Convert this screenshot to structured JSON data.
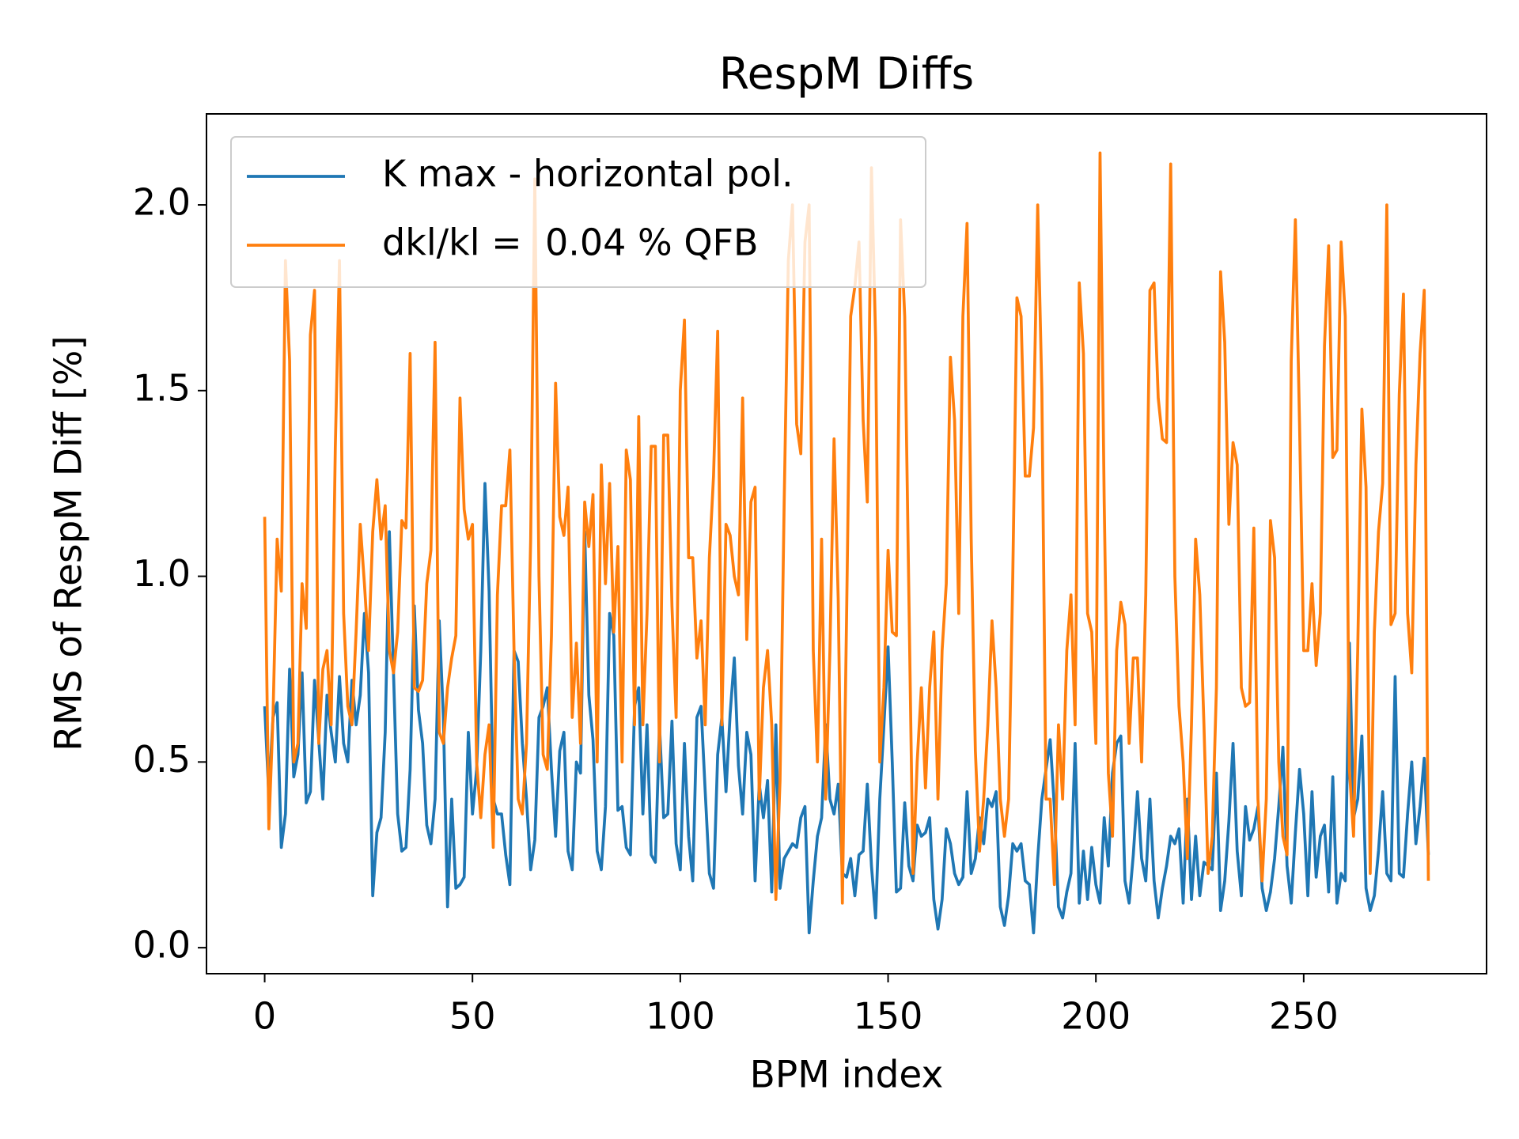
{
  "chart_data": {
    "type": "line",
    "title": "RespM Diffs",
    "xlabel": "BPM index",
    "ylabel": "RMS of RespM Diff [%]",
    "x": [
      0,
      1,
      2,
      3,
      4,
      5,
      6,
      7,
      8,
      9,
      10,
      11,
      12,
      13,
      14,
      15,
      16,
      17,
      18,
      19,
      20,
      21,
      22,
      23,
      24,
      25,
      26,
      27,
      28,
      29,
      30,
      31,
      32,
      33,
      34,
      35,
      36,
      37,
      38,
      39,
      40,
      41,
      42,
      43,
      44,
      45,
      46,
      47,
      48,
      49,
      50,
      51,
      52,
      53,
      54,
      55,
      56,
      57,
      58,
      59,
      60,
      61,
      62,
      63,
      64,
      65,
      66,
      67,
      68,
      69,
      70,
      71,
      72,
      73,
      74,
      75,
      76,
      77,
      78,
      79,
      80,
      81,
      82,
      83,
      84,
      85,
      86,
      87,
      88,
      89,
      90,
      91,
      92,
      93,
      94,
      95,
      96,
      97,
      98,
      99,
      100,
      101,
      102,
      103,
      104,
      105,
      106,
      107,
      108,
      109,
      110,
      111,
      112,
      113,
      114,
      115,
      116,
      117,
      118,
      119,
      120,
      121,
      122,
      123,
      124,
      125,
      126,
      127,
      128,
      129,
      130,
      131,
      132,
      133,
      134,
      135,
      136,
      137,
      138,
      139,
      140,
      141,
      142,
      143,
      144,
      145,
      146,
      147,
      148,
      149,
      150,
      151,
      152,
      153,
      154,
      155,
      156,
      157,
      158,
      159,
      160,
      161,
      162,
      163,
      164,
      165,
      166,
      167,
      168,
      169,
      170,
      171,
      172,
      173,
      174,
      175,
      176,
      177,
      178,
      179,
      180,
      181,
      182,
      183,
      184,
      185,
      186,
      187,
      188,
      189,
      190,
      191,
      192,
      193,
      194,
      195,
      196,
      197,
      198,
      199,
      200,
      201,
      202,
      203,
      204,
      205,
      206,
      207,
      208,
      209,
      210,
      211,
      212,
      213,
      214,
      215,
      216,
      217,
      218,
      219,
      220,
      221,
      222,
      223,
      224,
      225,
      226,
      227,
      228,
      229,
      230,
      231,
      232,
      233,
      234,
      235,
      236,
      237,
      238,
      239,
      240,
      241,
      242,
      243,
      244,
      245,
      246,
      247,
      248,
      249,
      250,
      251,
      252,
      253,
      254,
      255,
      256,
      257,
      258,
      259,
      260,
      261,
      262,
      263,
      264,
      265,
      266,
      267,
      268,
      269,
      270,
      271,
      272,
      273,
      274,
      275,
      276,
      277,
      278,
      279,
      280
    ],
    "series": [
      {
        "name": "K max - horizontal pol.",
        "color": "#1f77b4",
        "values": [
          0.65,
          0.41,
          0.62,
          0.66,
          0.27,
          0.36,
          0.75,
          0.46,
          0.52,
          0.74,
          0.39,
          0.42,
          0.72,
          0.56,
          0.4,
          0.68,
          0.58,
          0.5,
          0.73,
          0.55,
          0.5,
          0.72,
          0.6,
          0.68,
          0.9,
          0.74,
          0.14,
          0.31,
          0.35,
          0.58,
          1.12,
          0.74,
          0.36,
          0.26,
          0.27,
          0.48,
          0.92,
          0.64,
          0.55,
          0.33,
          0.28,
          0.4,
          0.88,
          0.62,
          0.11,
          0.4,
          0.16,
          0.17,
          0.19,
          0.58,
          0.36,
          0.48,
          0.8,
          1.25,
          0.96,
          0.4,
          0.36,
          0.36,
          0.25,
          0.17,
          0.8,
          0.77,
          0.55,
          0.4,
          0.21,
          0.29,
          0.62,
          0.65,
          0.7,
          0.48,
          0.3,
          0.53,
          0.58,
          0.26,
          0.21,
          0.5,
          0.47,
          1.12,
          0.68,
          0.56,
          0.26,
          0.21,
          0.38,
          0.9,
          0.84,
          0.37,
          0.38,
          0.27,
          0.25,
          0.65,
          0.7,
          0.36,
          0.6,
          0.25,
          0.23,
          0.6,
          0.35,
          0.36,
          0.61,
          0.28,
          0.21,
          0.55,
          0.3,
          0.18,
          0.62,
          0.65,
          0.42,
          0.2,
          0.16,
          0.52,
          0.62,
          0.42,
          0.63,
          0.78,
          0.49,
          0.36,
          0.58,
          0.52,
          0.18,
          0.44,
          0.35,
          0.45,
          0.15,
          0.6,
          0.16,
          0.24,
          0.26,
          0.28,
          0.27,
          0.35,
          0.38,
          0.04,
          0.18,
          0.3,
          0.35,
          0.6,
          0.4,
          0.36,
          0.44,
          0.2,
          0.19,
          0.24,
          0.14,
          0.25,
          0.26,
          0.44,
          0.22,
          0.08,
          0.4,
          0.6,
          0.81,
          0.5,
          0.15,
          0.16,
          0.39,
          0.22,
          0.18,
          0.33,
          0.3,
          0.31,
          0.35,
          0.13,
          0.05,
          0.13,
          0.32,
          0.28,
          0.2,
          0.17,
          0.19,
          0.42,
          0.2,
          0.24,
          0.35,
          0.28,
          0.4,
          0.38,
          0.42,
          0.11,
          0.06,
          0.14,
          0.28,
          0.26,
          0.28,
          0.18,
          0.17,
          0.04,
          0.24,
          0.4,
          0.48,
          0.56,
          0.38,
          0.11,
          0.08,
          0.15,
          0.2,
          0.55,
          0.12,
          0.26,
          0.13,
          0.27,
          0.17,
          0.12,
          0.35,
          0.22,
          0.47,
          0.55,
          0.57,
          0.18,
          0.12,
          0.25,
          0.42,
          0.24,
          0.18,
          0.4,
          0.18,
          0.08,
          0.16,
          0.22,
          0.3,
          0.28,
          0.32,
          0.12,
          0.4,
          0.13,
          0.3,
          0.14,
          0.23,
          0.22,
          0.21,
          0.47,
          0.1,
          0.18,
          0.34,
          0.55,
          0.26,
          0.14,
          0.38,
          0.29,
          0.32,
          0.38,
          0.16,
          0.1,
          0.15,
          0.24,
          0.38,
          0.54,
          0.22,
          0.12,
          0.31,
          0.48,
          0.36,
          0.14,
          0.42,
          0.19,
          0.3,
          0.33,
          0.15,
          0.46,
          0.12,
          0.2,
          0.18,
          0.82,
          0.35,
          0.4,
          0.57,
          0.16,
          0.1,
          0.14,
          0.26,
          0.42,
          0.2,
          0.18,
          0.73,
          0.2,
          0.19,
          0.36,
          0.5,
          0.28,
          0.38,
          0.51,
          0.25
        ]
      },
      {
        "name": "dkl/kl =  0.04 % QFB",
        "color": "#ff7f0e",
        "values": [
          1.16,
          0.32,
          0.62,
          1.1,
          0.96,
          1.85,
          1.58,
          0.5,
          0.55,
          0.98,
          0.86,
          1.65,
          1.77,
          0.55,
          0.75,
          0.8,
          0.6,
          1.35,
          1.85,
          0.9,
          0.65,
          0.6,
          0.85,
          1.14,
          0.98,
          0.8,
          1.12,
          1.26,
          1.1,
          1.19,
          0.8,
          0.74,
          0.85,
          1.15,
          1.13,
          1.6,
          0.7,
          0.69,
          0.72,
          0.98,
          1.07,
          1.63,
          0.58,
          0.55,
          0.7,
          0.78,
          0.84,
          1.48,
          1.18,
          1.1,
          1.14,
          0.5,
          0.35,
          0.52,
          0.6,
          0.27,
          0.95,
          1.19,
          1.19,
          1.34,
          0.8,
          0.4,
          0.36,
          0.55,
          1.1,
          2.07,
          1.0,
          0.52,
          0.48,
          0.84,
          1.52,
          1.16,
          1.11,
          1.24,
          0.62,
          0.82,
          0.55,
          1.2,
          1.08,
          1.22,
          0.5,
          1.3,
          0.98,
          1.25,
          0.85,
          1.08,
          0.5,
          1.34,
          1.26,
          0.6,
          1.43,
          0.6,
          0.9,
          1.35,
          1.35,
          0.5,
          1.38,
          1.38,
          0.92,
          0.62,
          1.5,
          1.69,
          1.05,
          1.05,
          0.78,
          0.88,
          0.6,
          1.05,
          1.27,
          1.66,
          0.6,
          1.14,
          1.11,
          1.0,
          0.95,
          1.48,
          0.83,
          1.2,
          1.24,
          0.4,
          0.7,
          0.8,
          0.6,
          0.13,
          0.45,
          1.2,
          1.85,
          2.0,
          1.41,
          1.33,
          1.9,
          2.0,
          0.8,
          0.5,
          1.1,
          0.4,
          0.8,
          1.37,
          0.94,
          0.12,
          0.88,
          1.7,
          1.78,
          1.9,
          1.42,
          1.2,
          2.1,
          1.64,
          0.5,
          0.7,
          1.07,
          0.85,
          0.84,
          1.96,
          1.7,
          0.95,
          0.2,
          0.5,
          0.7,
          0.43,
          0.7,
          0.85,
          0.4,
          0.8,
          0.98,
          1.59,
          1.42,
          0.9,
          1.7,
          1.95,
          1.1,
          0.53,
          0.26,
          0.4,
          0.6,
          0.88,
          0.7,
          0.4,
          0.3,
          0.4,
          1.0,
          1.75,
          1.7,
          1.27,
          1.27,
          1.4,
          2.0,
          1.5,
          0.4,
          0.4,
          0.17,
          0.6,
          0.4,
          0.8,
          0.95,
          0.6,
          1.79,
          1.6,
          0.9,
          0.85,
          0.55,
          2.14,
          1.2,
          0.47,
          0.3,
          0.8,
          0.93,
          0.87,
          0.55,
          0.78,
          0.78,
          0.5,
          0.95,
          1.77,
          1.79,
          1.48,
          1.37,
          1.36,
          2.11,
          1.0,
          0.65,
          0.5,
          0.24,
          0.6,
          1.1,
          0.95,
          0.6,
          0.2,
          0.3,
          0.7,
          1.82,
          1.63,
          1.14,
          1.36,
          1.3,
          0.7,
          0.65,
          0.66,
          1.13,
          0.4,
          0.18,
          0.4,
          1.15,
          1.05,
          0.5,
          0.3,
          0.25,
          1.58,
          1.96,
          1.41,
          0.8,
          0.8,
          0.98,
          0.76,
          0.9,
          1.62,
          1.89,
          1.32,
          1.34,
          1.9,
          1.7,
          0.48,
          0.3,
          0.8,
          1.45,
          1.24,
          0.2,
          0.85,
          1.12,
          1.25,
          2.0,
          0.87,
          0.9,
          1.49,
          1.76,
          0.9,
          0.74,
          1.3,
          1.6,
          1.77,
          0.18
        ]
      }
    ],
    "xlim": [
      -14,
      294
    ],
    "ylim": [
      -0.07,
      2.245
    ],
    "xticks": [
      0,
      50,
      100,
      150,
      200,
      250
    ],
    "yticks": [
      {
        "value": 0,
        "label": "0.0"
      },
      {
        "value": 0.5,
        "label": "0.5"
      },
      {
        "value": 1,
        "label": "1.0"
      },
      {
        "value": 1.5,
        "label": "1.5"
      },
      {
        "value": 2,
        "label": "2.0"
      }
    ],
    "legend": "upper left",
    "grid": false
  }
}
